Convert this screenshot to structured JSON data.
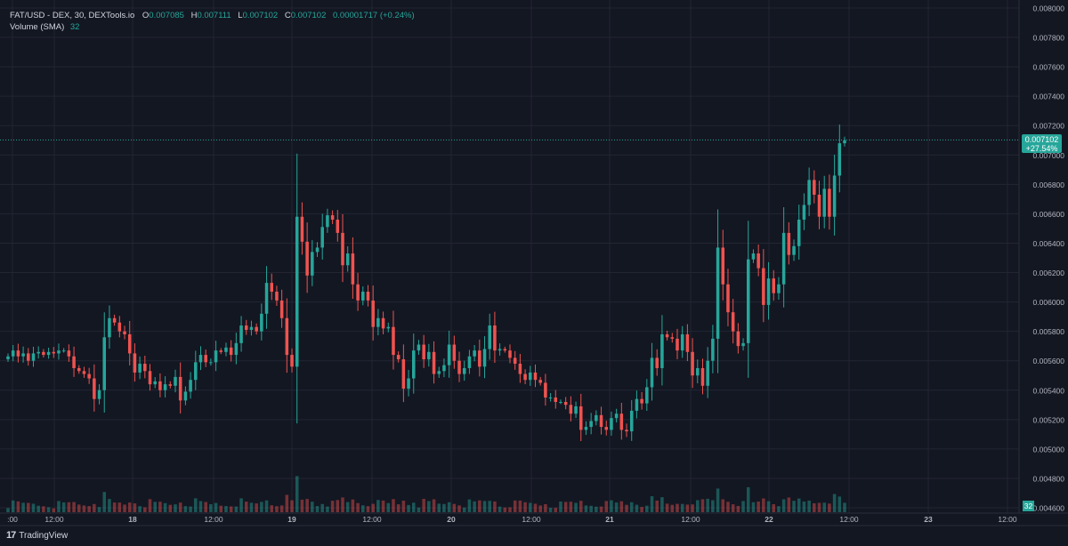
{
  "legend": {
    "symbol": "FAT/USD - DEX, 30, DEXTools.io",
    "open_label": "O",
    "open": "0.007085",
    "high_label": "H",
    "high": "0.007111",
    "low_label": "L",
    "low": "0.007102",
    "close_label": "C",
    "close": "0.007102",
    "change": "0.00001717 (+0.24%)",
    "volume_label": "Volume (SMA)",
    "volume_value": "32"
  },
  "price_badge": {
    "price": "0.007102",
    "change_pct": "+27.54%"
  },
  "volume_badge": "32",
  "branding": {
    "logo": "17",
    "name": "TradingView"
  },
  "colors": {
    "up": "#26a69a",
    "down": "#ef5350",
    "background": "#131722",
    "grid": "#232632"
  },
  "chart_data": {
    "type": "candlestick",
    "y_tick_labels": [
      "0.008000",
      "0.007800",
      "0.007600",
      "0.007400",
      "0.007200",
      "0.007000",
      "0.006800",
      "0.006600",
      "0.006400",
      "0.006200",
      "0.006000",
      "0.005800",
      "0.005600",
      "0.005400",
      "0.005200",
      "0.005000",
      "0.004800",
      "0.004600"
    ],
    "ylim": [
      0.0046,
      0.008
    ],
    "x_tick_labels": [
      ":00",
      "12:00",
      "18",
      "12:00",
      "19",
      "12:00",
      "20",
      "12:00",
      "21",
      "12:00",
      "22",
      "12:00",
      "23",
      "12:00"
    ],
    "last_price": 0.007102,
    "close": [
      0.00563,
      0.00567,
      0.00563,
      0.00565,
      0.0056,
      0.00565,
      0.00566,
      0.00564,
      0.00566,
      0.00565,
      0.00567,
      0.00567,
      0.00563,
      0.00555,
      0.00553,
      0.00551,
      0.00548,
      0.00534,
      0.0054,
      0.00576,
      0.00589,
      0.00586,
      0.0058,
      0.00578,
      0.00565,
      0.00552,
      0.00558,
      0.00553,
      0.00544,
      0.00546,
      0.0054,
      0.00544,
      0.00543,
      0.00549,
      0.00533,
      0.00539,
      0.00547,
      0.00559,
      0.00564,
      0.00559,
      0.00559,
      0.00567,
      0.00566,
      0.00569,
      0.00564,
      0.00572,
      0.00584,
      0.00581,
      0.00583,
      0.0058,
      0.00592,
      0.00613,
      0.00607,
      0.00601,
      0.00589,
      0.00564,
      0.00556,
      0.00658,
      0.00641,
      0.00618,
      0.00634,
      0.00637,
      0.00651,
      0.00659,
      0.00656,
      0.00647,
      0.00625,
      0.00633,
      0.00612,
      0.00601,
      0.00607,
      0.00601,
      0.00583,
      0.00589,
      0.00582,
      0.00583,
      0.00564,
      0.00561,
      0.00541,
      0.00548,
      0.00567,
      0.00571,
      0.00561,
      0.00566,
      0.00551,
      0.00553,
      0.00557,
      0.00571,
      0.0056,
      0.00551,
      0.00555,
      0.00563,
      0.00567,
      0.00556,
      0.00568,
      0.00584,
      0.00567,
      0.00568,
      0.00567,
      0.00562,
      0.00558,
      0.00551,
      0.00547,
      0.00552,
      0.00547,
      0.00545,
      0.00535,
      0.00535,
      0.00532,
      0.00532,
      0.0053,
      0.00524,
      0.00529,
      0.00513,
      0.00515,
      0.00519,
      0.00523,
      0.00515,
      0.00513,
      0.00521,
      0.00524,
      0.00513,
      0.00512,
      0.00526,
      0.00534,
      0.00531,
      0.00542,
      0.00562,
      0.00555,
      0.00578,
      0.00576,
      0.00575,
      0.00567,
      0.00578,
      0.00566,
      0.0055,
      0.00555,
      0.00543,
      0.0056,
      0.00575,
      0.00637,
      0.00612,
      0.00593,
      0.0058,
      0.0057,
      0.00572,
      0.00629,
      0.00633,
      0.00623,
      0.00598,
      0.00616,
      0.00606,
      0.00612,
      0.00647,
      0.00632,
      0.00638,
      0.00656,
      0.00666,
      0.00683,
      0.00673,
      0.00658,
      0.00677,
      0.00658,
      0.00686,
      0.00708,
      0.0071
    ]
  }
}
